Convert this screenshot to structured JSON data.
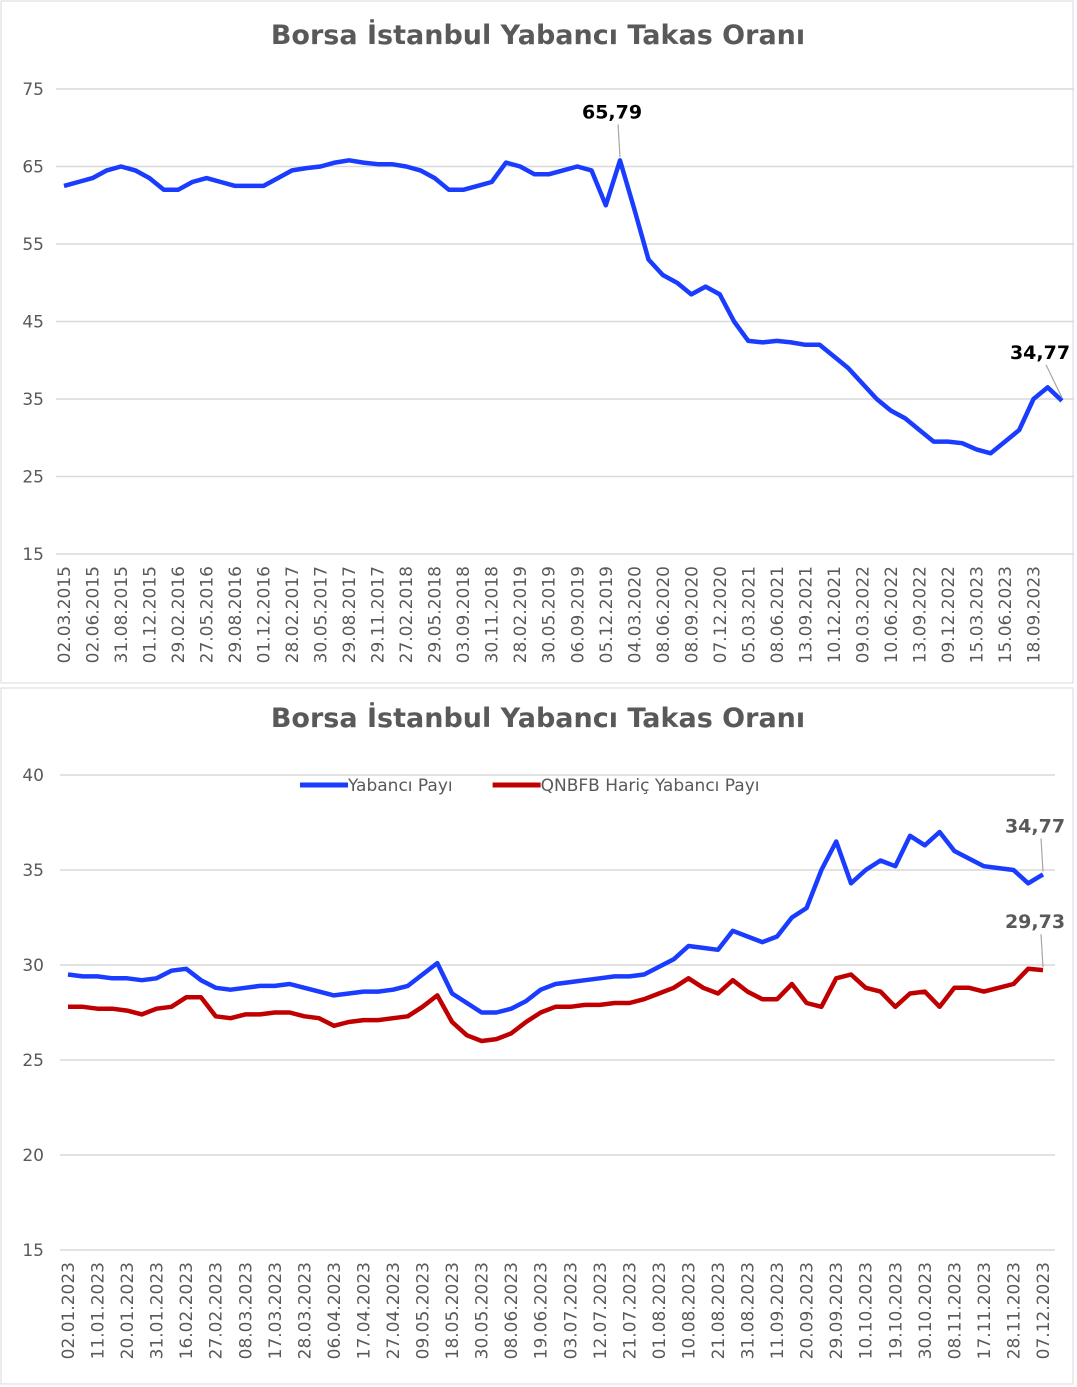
{
  "chart_data": [
    {
      "type": "line",
      "title": "Borsa İstanbul Yabancı Takas Oranı",
      "color": "#1a3cff",
      "grid": true,
      "ylim": [
        15,
        75
      ],
      "yticks": [
        15,
        25,
        35,
        45,
        55,
        65,
        75
      ],
      "categories": [
        "02.03.2015",
        null,
        "02.06.2015",
        null,
        "31.08.2015",
        null,
        "01.12.2015",
        null,
        "29.02.2016",
        null,
        "27.05.2016",
        null,
        "29.08.2016",
        null,
        "01.12.2016",
        null,
        "28.02.2017",
        null,
        "30.05.2017",
        null,
        "29.08.2017",
        null,
        "29.11.2017",
        null,
        "27.02.2018",
        null,
        "29.05.2018",
        null,
        "03.09.2018",
        null,
        "30.11.2018",
        null,
        "28.02.2019",
        null,
        "30.05.2019",
        null,
        "06.09.2019",
        null,
        "05.12.2019",
        null,
        "04.03.2020",
        null,
        "08.06.2020",
        null,
        "08.09.2020",
        null,
        "07.12.2020",
        null,
        "05.03.2021",
        null,
        "08.06.2021",
        null,
        "13.09.2021",
        null,
        "10.12.2021",
        null,
        "09.03.2022",
        null,
        "10.06.2022",
        null,
        "13.09.2022",
        null,
        "09.12.2022",
        null,
        "15.03.2023",
        null,
        "15.06.2023",
        null,
        "18.09.2023",
        null,
        null
      ],
      "values": [
        62.5,
        63,
        63.5,
        64.5,
        65,
        64.5,
        63.5,
        62,
        62,
        63,
        63.5,
        63,
        62.5,
        62.5,
        62.5,
        63.5,
        64.5,
        64.8,
        65,
        65.5,
        65.8,
        65.5,
        65.3,
        65.3,
        65,
        64.5,
        63.5,
        62,
        62,
        62.5,
        63,
        65.5,
        65,
        64,
        64,
        64.5,
        65,
        64.5,
        60,
        65.79,
        59.5,
        53,
        51,
        50,
        48.5,
        49.5,
        48.5,
        45,
        42.5,
        42.3,
        42.5,
        42.3,
        42,
        42,
        40.5,
        39,
        37,
        35,
        33.5,
        32.5,
        31,
        29.5,
        29.5,
        29.3,
        28.5,
        28,
        29.5,
        31,
        35,
        36.5,
        34.77
      ],
      "value_labels": [
        null,
        null,
        null,
        null,
        null,
        null,
        null,
        null,
        null,
        null,
        null,
        null,
        null,
        null,
        null,
        null,
        null,
        null,
        null,
        null,
        null,
        null,
        null,
        null,
        null,
        null,
        null,
        null,
        null,
        null,
        null,
        null,
        null,
        null,
        null,
        null,
        null,
        null,
        null,
        "65,79",
        null,
        null,
        null,
        null,
        null,
        null,
        null,
        null,
        null,
        null,
        null,
        null,
        null,
        null,
        null,
        null,
        null,
        null,
        null,
        null,
        null,
        null,
        null,
        null,
        null,
        null,
        null,
        null,
        null,
        null,
        "34,77"
      ]
    },
    {
      "type": "line",
      "title": "Borsa İstanbul Yabancı Takas Oranı",
      "grid": true,
      "legend": "top",
      "ylim": [
        15,
        40
      ],
      "yticks": [
        15,
        20,
        25,
        30,
        35,
        40
      ],
      "categories": [
        "02.01.2023",
        null,
        "11.01.2023",
        null,
        "20.01.2023",
        null,
        "31.01.2023",
        null,
        "16.02.2023",
        null,
        "27.02.2023",
        null,
        "08.03.2023",
        null,
        "17.03.2023",
        null,
        "28.03.2023",
        null,
        "06.04.2023",
        null,
        "17.04.2023",
        null,
        "27.04.2023",
        null,
        "09.05.2023",
        null,
        "18.05.2023",
        null,
        "30.05.2023",
        null,
        "08.06.2023",
        null,
        "19.06.2023",
        null,
        "03.07.2023",
        null,
        "12.07.2023",
        null,
        "21.07.2023",
        null,
        "01.08.2023",
        null,
        "10.08.2023",
        null,
        "21.08.2023",
        null,
        "31.08.2023",
        null,
        "11.09.2023",
        null,
        "20.09.2023",
        null,
        "29.09.2023",
        null,
        "10.10.2023",
        null,
        "19.10.2023",
        null,
        "30.10.2023",
        null,
        "08.11.2023",
        null,
        "17.11.2023",
        null,
        "28.11.2023",
        null,
        "07.12.2023"
      ],
      "series": [
        {
          "name": "Yabancı Payı",
          "color": "#1a3cff",
          "values": [
            29.5,
            29.4,
            29.4,
            29.3,
            29.3,
            29.2,
            29.3,
            29.7,
            29.8,
            29.2,
            28.8,
            28.7,
            28.8,
            28.9,
            28.9,
            29,
            28.8,
            28.6,
            28.4,
            28.5,
            28.6,
            28.6,
            28.7,
            28.9,
            29.5,
            30.1,
            28.5,
            28,
            27.5,
            27.5,
            27.7,
            28.1,
            28.7,
            29,
            29.1,
            29.2,
            29.3,
            29.4,
            29.4,
            29.5,
            29.9,
            30.3,
            31,
            30.9,
            30.8,
            31.8,
            31.5,
            31.2,
            31.5,
            32.5,
            33,
            35,
            36.5,
            34.3,
            35,
            35.5,
            35.2,
            36.8,
            36.3,
            37,
            36,
            35.6,
            35.2,
            35.1,
            35,
            34.3,
            34.77
          ],
          "value_labels": [
            null,
            null,
            null,
            null,
            null,
            null,
            null,
            null,
            null,
            null,
            null,
            null,
            null,
            null,
            null,
            null,
            null,
            null,
            null,
            null,
            null,
            null,
            null,
            null,
            null,
            null,
            null,
            null,
            null,
            null,
            null,
            null,
            null,
            null,
            null,
            null,
            null,
            null,
            null,
            null,
            null,
            null,
            null,
            null,
            null,
            null,
            null,
            null,
            null,
            null,
            null,
            null,
            null,
            null,
            null,
            null,
            null,
            null,
            null,
            null,
            null,
            null,
            null,
            null,
            null,
            null,
            "34,77"
          ]
        },
        {
          "name": "QNBFB Hariç Yabancı Payı",
          "color": "#c00000",
          "values": [
            27.8,
            27.8,
            27.7,
            27.7,
            27.6,
            27.4,
            27.7,
            27.8,
            28.3,
            28.3,
            27.3,
            27.2,
            27.4,
            27.4,
            27.5,
            27.5,
            27.3,
            27.2,
            26.8,
            27,
            27.1,
            27.1,
            27.2,
            27.3,
            27.8,
            28.4,
            27,
            26.3,
            26,
            26.1,
            26.4,
            27,
            27.5,
            27.8,
            27.8,
            27.9,
            27.9,
            28,
            28,
            28.2,
            28.5,
            28.8,
            29.3,
            28.8,
            28.5,
            29.2,
            28.6,
            28.2,
            28.2,
            29,
            28,
            27.8,
            29.3,
            29.5,
            28.8,
            28.6,
            27.8,
            28.5,
            28.6,
            27.8,
            28.8,
            28.8,
            28.6,
            28.8,
            29,
            29.8,
            29.73
          ],
          "value_labels": [
            null,
            null,
            null,
            null,
            null,
            null,
            null,
            null,
            null,
            null,
            null,
            null,
            null,
            null,
            null,
            null,
            null,
            null,
            null,
            null,
            null,
            null,
            null,
            null,
            null,
            null,
            null,
            null,
            null,
            null,
            null,
            null,
            null,
            null,
            null,
            null,
            null,
            null,
            null,
            null,
            null,
            null,
            null,
            null,
            null,
            null,
            null,
            null,
            null,
            null,
            null,
            null,
            null,
            null,
            null,
            null,
            null,
            null,
            null,
            null,
            null,
            null,
            null,
            null,
            null,
            null,
            "29,73"
          ]
        }
      ]
    }
  ]
}
